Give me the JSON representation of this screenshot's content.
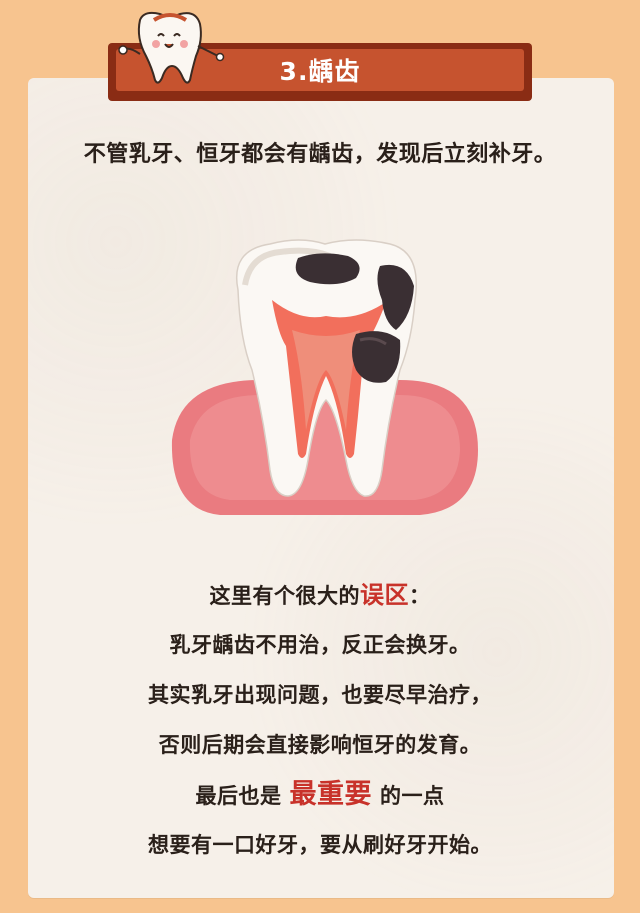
{
  "header": {
    "title": "3.龋齿"
  },
  "intro_text": "不管乳牙、恒牙都会有龋齿，发现后立刻补牙。",
  "paragraph": {
    "line1_a": "这里有个很大的",
    "line1_highlight": "误区",
    "line1_b": "：",
    "line2": "乳牙龋齿不用治，反正会换牙。",
    "line3": "其实乳牙出现问题，也要尽早治疗，",
    "line4": "否则后期会直接影响恒牙的发育。",
    "line5_a": "最后也是",
    "line5_highlight": "最重要",
    "line5_b": "的一点",
    "line6": "想要有一口好牙，要从刷好牙开始。"
  },
  "colors": {
    "background": "#f7c48f",
    "card": "#f6f0e9",
    "banner": "#c6532f",
    "highlight": "#c8322a"
  },
  "icons": [
    "tooth-mascot-icon",
    "decayed-tooth-illustration"
  ]
}
